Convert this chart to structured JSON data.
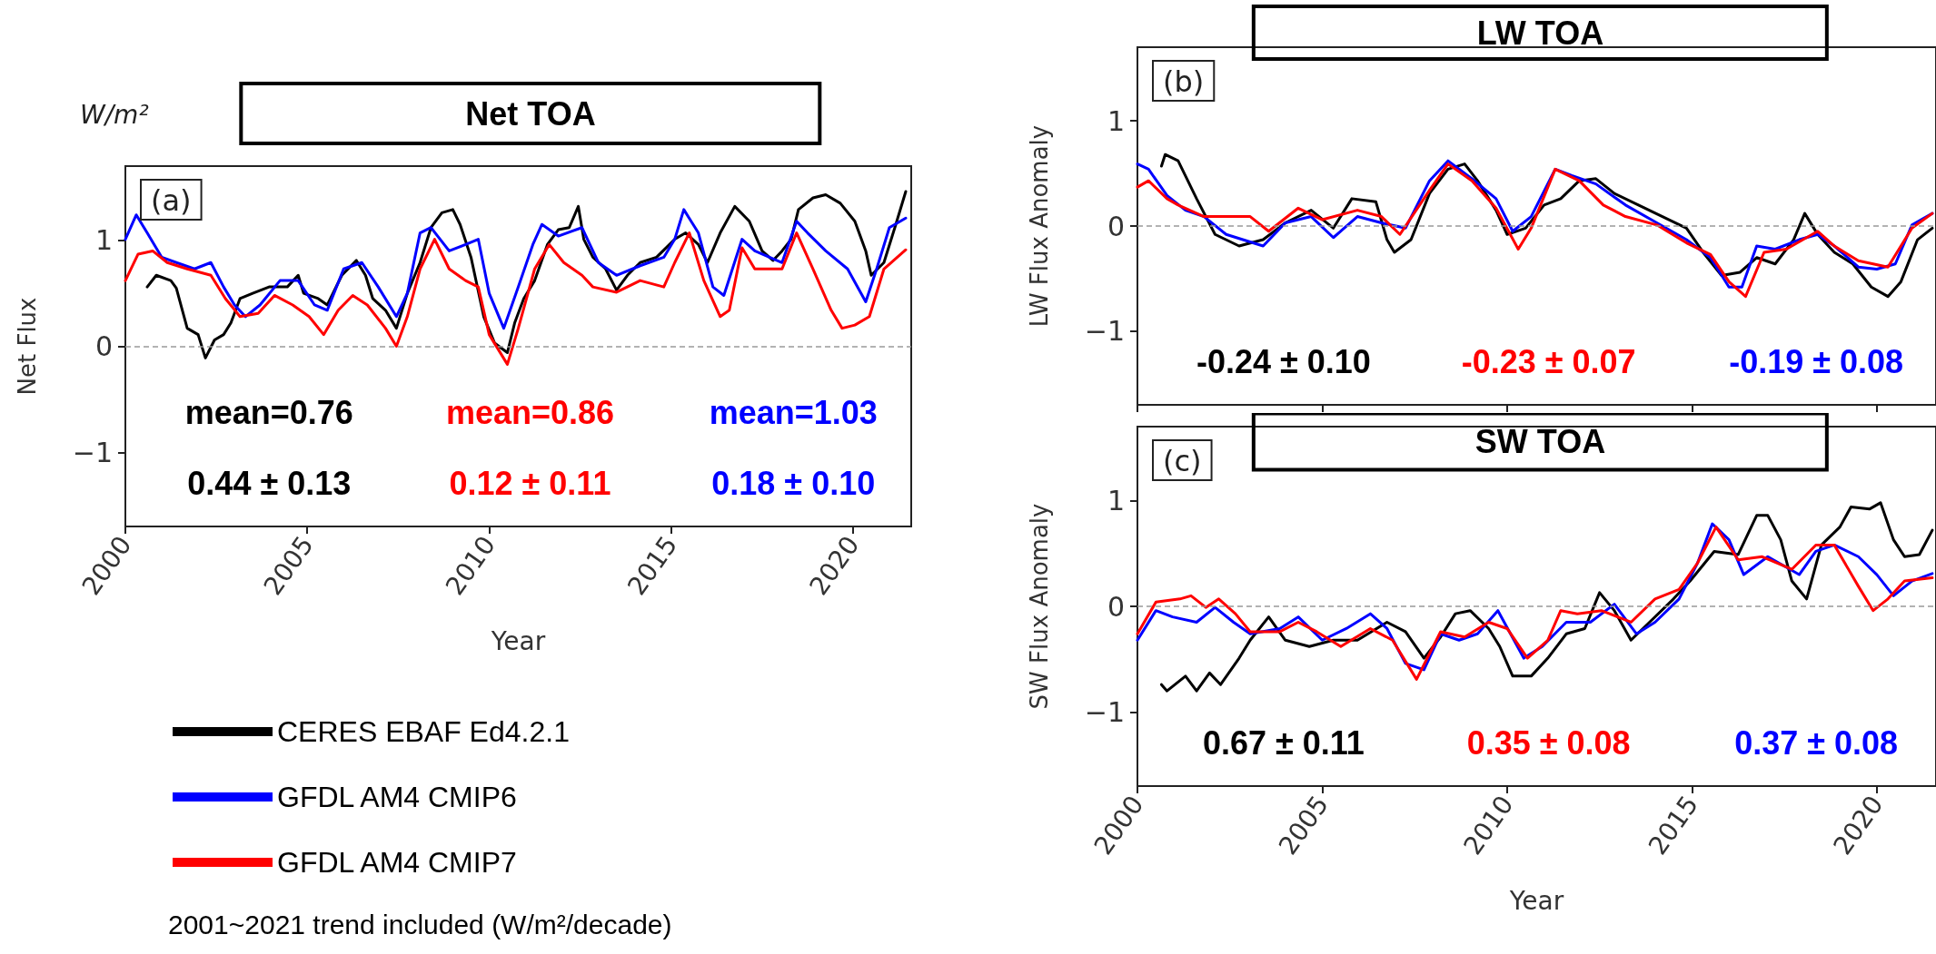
{
  "chart_data": [
    {
      "type": "line",
      "title": "Net TOA",
      "ylabel": "Net Flux",
      "xlabel": "Year",
      "xlim": [
        2000,
        2021.6
      ],
      "xticks": [
        2000,
        2005,
        2010,
        2015,
        2020
      ],
      "ylim": [
        -1.7,
        1.7
      ],
      "yticks": [
        -1,
        0,
        1
      ],
      "legend": "bottom",
      "annotations": [
        "(a)",
        "mean=0.76",
        "mean=0.86",
        "mean=1.03",
        "0.44 ± 0.13",
        "0.12 ± 0.11",
        "0.18 ± 0.10",
        "W/m²",
        "2001~2021 trend included (W/m²/decade)"
      ],
      "ref_lines": [
        {
          "axis": "y",
          "value": 0,
          "color": "#999999",
          "line_style": "dashed"
        }
      ],
      "series": [
        {
          "name": "CERES EBAF Ed4.2.1",
          "color": "#000000",
          "x": [
            2000.6,
            2000.85,
            2001.25,
            2001.4,
            2001.7,
            2002.0,
            2002.2,
            2002.45,
            2002.7,
            2002.9,
            2003.15,
            2003.5,
            2003.95,
            2004.45,
            2004.75,
            2004.9,
            2005.3,
            2005.55,
            2005.95,
            2006.35,
            2006.6,
            2006.8,
            2007.15,
            2007.45,
            2007.75,
            2008.1,
            2008.4,
            2008.7,
            2009.0,
            2009.2,
            2009.5,
            2009.85,
            2010.15,
            2010.5,
            2010.7,
            2010.95,
            2011.25,
            2011.6,
            2011.9,
            2012.2,
            2012.45,
            2012.6,
            2012.85,
            2013.2,
            2013.5,
            2013.8,
            2014.15,
            2014.6,
            2015.1,
            2015.4,
            2015.75,
            2016.0,
            2016.35,
            2016.75,
            2017.15,
            2017.5,
            2017.8,
            2018.05,
            2018.3,
            2018.5,
            2018.9,
            2019.25,
            2019.65,
            2020.05,
            2020.35,
            2020.5,
            2020.85,
            2021.15,
            2021.45
          ],
          "values": [
            0.56,
            0.67,
            0.62,
            0.55,
            0.17,
            0.11,
            -0.11,
            0.06,
            0.11,
            0.22,
            0.45,
            0.5,
            0.56,
            0.56,
            0.67,
            0.5,
            0.45,
            0.39,
            0.67,
            0.81,
            0.67,
            0.45,
            0.34,
            0.17,
            0.5,
            0.79,
            1.12,
            1.26,
            1.29,
            1.15,
            0.84,
            0.28,
            0.03,
            -0.06,
            0.22,
            0.45,
            0.62,
            0.96,
            1.1,
            1.12,
            1.32,
            1.01,
            0.84,
            0.73,
            0.53,
            0.67,
            0.79,
            0.84,
            1.01,
            1.07,
            0.96,
            0.79,
            1.07,
            1.32,
            1.18,
            0.9,
            0.81,
            0.9,
            1.01,
            1.29,
            1.4,
            1.43,
            1.35,
            1.18,
            0.9,
            0.67,
            0.79,
            1.12,
            1.46
          ]
        },
        {
          "name": "GFDL AM4 CMIP6",
          "color": "#0000ff",
          "x": [
            2000.0,
            2000.3,
            2000.6,
            2001.0,
            2001.4,
            2001.9,
            2002.35,
            2002.7,
            2003.0,
            2003.3,
            2003.7,
            2004.25,
            2004.75,
            2005.2,
            2005.55,
            2006.0,
            2006.5,
            2006.95,
            2007.45,
            2007.75,
            2008.1,
            2008.4,
            2008.9,
            2009.35,
            2009.7,
            2010.0,
            2010.4,
            2010.8,
            2011.2,
            2011.45,
            2011.9,
            2012.55,
            2013.0,
            2013.5,
            2014.15,
            2014.8,
            2015.1,
            2015.35,
            2015.75,
            2016.15,
            2016.45,
            2016.95,
            2017.3,
            2018.05,
            2018.45,
            2018.75,
            2019.25,
            2019.85,
            2020.35,
            2020.65,
            2021.0,
            2021.45
          ],
          "values": [
            1.01,
            1.24,
            1.07,
            0.84,
            0.79,
            0.73,
            0.79,
            0.56,
            0.39,
            0.28,
            0.39,
            0.62,
            0.62,
            0.39,
            0.34,
            0.73,
            0.79,
            0.56,
            0.28,
            0.5,
            1.07,
            1.12,
            0.9,
            0.96,
            1.01,
            0.5,
            0.17,
            0.56,
            0.96,
            1.15,
            1.04,
            1.12,
            0.79,
            0.67,
            0.76,
            0.84,
            1.01,
            1.29,
            1.07,
            0.56,
            0.48,
            1.01,
            0.9,
            0.79,
            1.18,
            1.07,
            0.9,
            0.73,
            0.42,
            0.73,
            1.12,
            1.21
          ]
        },
        {
          "name": "GFDL AM4 CMIP7",
          "color": "#ff0000",
          "x": [
            2000.0,
            2000.35,
            2000.75,
            2001.15,
            2001.7,
            2002.35,
            2002.75,
            2003.15,
            2003.65,
            2004.1,
            2004.6,
            2005.05,
            2005.45,
            2005.85,
            2006.25,
            2006.65,
            2007.15,
            2007.45,
            2007.75,
            2008.1,
            2008.5,
            2008.9,
            2009.35,
            2009.7,
            2010.0,
            2010.5,
            2010.8,
            2011.25,
            2011.65,
            2012.05,
            2012.55,
            2012.85,
            2013.5,
            2014.15,
            2014.8,
            2015.1,
            2015.5,
            2015.9,
            2016.35,
            2016.6,
            2016.95,
            2017.3,
            2018.05,
            2018.45,
            2018.9,
            2019.4,
            2019.7,
            2020.05,
            2020.45,
            2020.85,
            2021.45
          ],
          "values": [
            0.62,
            0.87,
            0.9,
            0.79,
            0.73,
            0.67,
            0.45,
            0.28,
            0.31,
            0.48,
            0.39,
            0.28,
            0.11,
            0.34,
            0.48,
            0.39,
            0.17,
            0.0,
            0.28,
            0.73,
            1.01,
            0.73,
            0.62,
            0.56,
            0.11,
            -0.17,
            0.17,
            0.73,
            0.96,
            0.79,
            0.67,
            0.56,
            0.51,
            0.62,
            0.56,
            0.79,
            1.07,
            0.62,
            0.28,
            0.34,
            0.93,
            0.73,
            0.73,
            1.07,
            0.73,
            0.34,
            0.17,
            0.2,
            0.28,
            0.73,
            0.91
          ]
        }
      ]
    },
    {
      "type": "line",
      "title": "LW TOA",
      "ylabel": "LW Flux Anomaly",
      "xlim": [
        2000,
        2021.6
      ],
      "xticks": [
        2000,
        2005,
        2010,
        2015,
        2020
      ],
      "ylim": [
        -1.7,
        1.7
      ],
      "yticks": [
        -1,
        0,
        1
      ],
      "tick_labels": "y",
      "annotations": [
        "(b)",
        "-0.24 ± 0.10",
        "-0.23 ± 0.07",
        "-0.19 ± 0.08"
      ],
      "ref_lines": [
        {
          "axis": "y",
          "value": 0,
          "color": "#999999",
          "line_style": "dashed"
        }
      ],
      "series": [
        {
          "color": "#000000",
          "x": [
            2000.65,
            2000.75,
            2001.1,
            2001.6,
            2002.1,
            2002.75,
            2003.4,
            2004.0,
            2004.7,
            2005.3,
            2005.8,
            2006.45,
            2006.75,
            2006.95,
            2007.4,
            2007.9,
            2008.4,
            2008.85,
            2009.2,
            2009.7,
            2010.0,
            2010.5,
            2011.0,
            2011.45,
            2011.95,
            2012.4,
            2012.9,
            2013.55,
            2014.2,
            2014.85,
            2015.3,
            2015.8,
            2016.3,
            2016.75,
            2017.25,
            2017.75,
            2018.05,
            2018.4,
            2018.85,
            2019.35,
            2019.85,
            2020.3,
            2020.65,
            2021.1,
            2021.5
          ],
          "values": [
            0.57,
            0.68,
            0.62,
            0.26,
            -0.08,
            -0.19,
            -0.13,
            0.03,
            0.15,
            -0.02,
            0.26,
            0.23,
            -0.13,
            -0.25,
            -0.13,
            0.31,
            0.54,
            0.59,
            0.43,
            0.15,
            -0.08,
            -0.02,
            0.2,
            0.26,
            0.43,
            0.45,
            0.31,
            0.2,
            0.09,
            -0.02,
            -0.25,
            -0.47,
            -0.44,
            -0.3,
            -0.36,
            -0.13,
            0.12,
            -0.08,
            -0.25,
            -0.36,
            -0.58,
            -0.67,
            -0.53,
            -0.13,
            -0.02
          ]
        },
        {
          "color": "#0000ff",
          "x": [
            2000.0,
            2000.3,
            2000.8,
            2001.3,
            2001.8,
            2002.4,
            2003.4,
            2004.0,
            2004.7,
            2005.3,
            2005.95,
            2006.6,
            2007.25,
            2007.9,
            2008.4,
            2009.05,
            2009.7,
            2010.15,
            2010.65,
            2011.3,
            2011.75,
            2012.4,
            2013.2,
            2014.05,
            2014.85,
            2015.5,
            2016.0,
            2016.35,
            2016.75,
            2017.25,
            2017.9,
            2018.4,
            2018.85,
            2019.5,
            2020.0,
            2020.5,
            2020.95,
            2021.5
          ],
          "values": [
            0.59,
            0.54,
            0.29,
            0.15,
            0.09,
            -0.08,
            -0.19,
            0.03,
            0.09,
            -0.11,
            0.09,
            0.03,
            -0.02,
            0.43,
            0.62,
            0.45,
            0.26,
            -0.05,
            0.09,
            0.54,
            0.48,
            0.4,
            0.2,
            0.03,
            -0.13,
            -0.3,
            -0.58,
            -0.58,
            -0.19,
            -0.22,
            -0.13,
            -0.08,
            -0.19,
            -0.39,
            -0.41,
            -0.36,
            0.01,
            0.12
          ]
        },
        {
          "color": "#ff0000",
          "x": [
            2000.0,
            2000.3,
            2000.8,
            2001.1,
            2001.8,
            2002.4,
            2003.05,
            2003.55,
            2004.35,
            2005.0,
            2005.95,
            2006.6,
            2007.1,
            2007.9,
            2008.4,
            2009.05,
            2009.7,
            2010.3,
            2010.65,
            2011.3,
            2011.95,
            2012.6,
            2013.2,
            2014.05,
            2014.85,
            2015.5,
            2016.0,
            2016.45,
            2016.95,
            2017.55,
            2018.4,
            2018.85,
            2019.5,
            2020.3,
            2020.95,
            2021.5
          ],
          "values": [
            0.37,
            0.43,
            0.26,
            0.2,
            0.09,
            0.09,
            0.09,
            -0.05,
            0.17,
            0.06,
            0.15,
            0.09,
            -0.08,
            0.34,
            0.59,
            0.43,
            0.17,
            -0.22,
            -0.02,
            0.54,
            0.43,
            0.2,
            0.09,
            0.01,
            -0.16,
            -0.27,
            -0.53,
            -0.67,
            -0.25,
            -0.22,
            -0.05,
            -0.19,
            -0.33,
            -0.39,
            -0.02,
            0.12
          ]
        }
      ]
    },
    {
      "type": "line",
      "title": "SW TOA",
      "ylabel": "SW Flux Anomaly",
      "xlabel": "Year",
      "xlim": [
        2000,
        2021.6
      ],
      "xticks": [
        2000,
        2005,
        2010,
        2015,
        2020
      ],
      "ylim": [
        -1.7,
        1.7
      ],
      "yticks": [
        -1,
        0,
        1
      ],
      "annotations": [
        "(c)",
        "0.67 ± 0.11",
        "0.35 ± 0.08",
        "0.37 ± 0.08"
      ],
      "ref_lines": [
        {
          "axis": "y",
          "value": 0,
          "color": "#999999",
          "line_style": "dashed"
        }
      ],
      "series": [
        {
          "color": "#000000",
          "x": [
            2000.65,
            2000.8,
            2001.3,
            2001.6,
            2001.95,
            2002.25,
            2002.75,
            2003.05,
            2003.55,
            2004.0,
            2004.65,
            2005.3,
            2005.95,
            2006.75,
            2007.25,
            2007.75,
            2008.2,
            2008.6,
            2009.0,
            2009.5,
            2009.8,
            2010.15,
            2010.65,
            2011.1,
            2011.6,
            2012.1,
            2012.5,
            2012.9,
            2013.35,
            2013.85,
            2014.5,
            2014.95,
            2015.6,
            2016.25,
            2016.75,
            2017.05,
            2017.4,
            2017.7,
            2018.1,
            2018.5,
            2019.0,
            2019.3,
            2019.8,
            2020.1,
            2020.45,
            2020.75,
            2021.15,
            2021.5
          ],
          "values": [
            -0.74,
            -0.8,
            -0.66,
            -0.8,
            -0.63,
            -0.74,
            -0.49,
            -0.32,
            -0.1,
            -0.32,
            -0.38,
            -0.32,
            -0.32,
            -0.15,
            -0.24,
            -0.49,
            -0.29,
            -0.07,
            -0.04,
            -0.21,
            -0.38,
            -0.66,
            -0.66,
            -0.49,
            -0.26,
            -0.21,
            0.13,
            -0.04,
            -0.32,
            -0.15,
            0.07,
            0.24,
            0.52,
            0.49,
            0.86,
            0.86,
            0.63,
            0.24,
            0.07,
            0.58,
            0.75,
            0.94,
            0.92,
            0.98,
            0.63,
            0.47,
            0.49,
            0.72
          ]
        },
        {
          "color": "#0000ff",
          "x": [
            2000.0,
            2000.5,
            2000.95,
            2001.6,
            2002.1,
            2002.6,
            2003.05,
            2003.85,
            2004.35,
            2005.0,
            2005.65,
            2006.3,
            2006.75,
            2007.25,
            2007.75,
            2008.2,
            2008.7,
            2009.2,
            2009.75,
            2010.45,
            2010.95,
            2011.6,
            2012.25,
            2012.9,
            2013.5,
            2014.0,
            2014.65,
            2015.15,
            2015.55,
            2016.0,
            2016.4,
            2017.05,
            2017.9,
            2018.35,
            2018.85,
            2019.5,
            2020.0,
            2020.45,
            2020.95,
            2021.5
          ],
          "values": [
            -0.32,
            -0.04,
            -0.1,
            -0.15,
            -0.01,
            -0.15,
            -0.26,
            -0.21,
            -0.1,
            -0.32,
            -0.21,
            -0.07,
            -0.21,
            -0.54,
            -0.6,
            -0.26,
            -0.32,
            -0.26,
            -0.04,
            -0.49,
            -0.38,
            -0.15,
            -0.15,
            0.02,
            -0.26,
            -0.15,
            0.07,
            0.41,
            0.78,
            0.63,
            0.3,
            0.47,
            0.3,
            0.52,
            0.58,
            0.47,
            0.3,
            0.1,
            0.24,
            0.31
          ]
        },
        {
          "color": "#ff0000",
          "x": [
            2000.0,
            2000.5,
            2001.15,
            2001.45,
            2001.85,
            2002.2,
            2002.65,
            2003.05,
            2003.85,
            2004.35,
            2004.85,
            2005.5,
            2006.3,
            2006.9,
            2007.55,
            2008.2,
            2008.85,
            2009.5,
            2010.0,
            2010.55,
            2011.1,
            2011.45,
            2011.9,
            2012.55,
            2013.35,
            2014.0,
            2014.65,
            2015.15,
            2015.65,
            2016.25,
            2016.9,
            2017.7,
            2018.35,
            2018.85,
            2019.5,
            2019.9,
            2020.3,
            2020.75,
            2021.5
          ],
          "values": [
            -0.26,
            0.04,
            0.07,
            0.1,
            -0.01,
            0.07,
            -0.07,
            -0.24,
            -0.24,
            -0.15,
            -0.24,
            -0.38,
            -0.21,
            -0.32,
            -0.69,
            -0.24,
            -0.29,
            -0.15,
            -0.21,
            -0.49,
            -0.32,
            -0.04,
            -0.07,
            -0.04,
            -0.15,
            0.07,
            0.16,
            0.41,
            0.75,
            0.44,
            0.47,
            0.35,
            0.58,
            0.58,
            0.19,
            -0.04,
            0.07,
            0.24,
            0.27
          ]
        }
      ]
    }
  ]
}
